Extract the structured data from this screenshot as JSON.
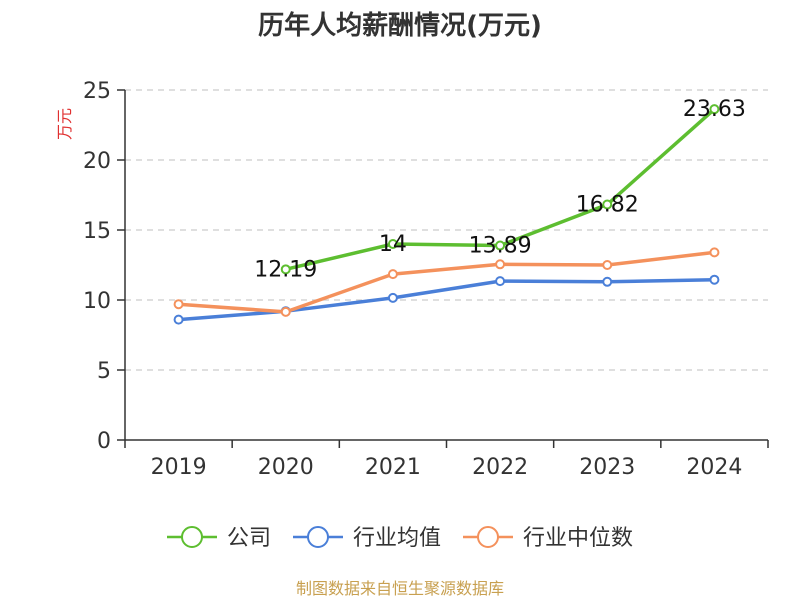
{
  "chart_data": {
    "type": "line",
    "title": "历年人均薪酬情况(万元)",
    "ylabel": "万元",
    "ylim": [
      0,
      25
    ],
    "yticks": [
      0,
      5,
      10,
      15,
      20,
      25
    ],
    "categories": [
      "2019",
      "2020",
      "2021",
      "2022",
      "2023",
      "2024"
    ],
    "series": [
      {
        "name": "公司",
        "color": "#5dbe30",
        "values": [
          null,
          12.19,
          14,
          13.89,
          16.82,
          23.63
        ],
        "labels": true
      },
      {
        "name": "行业均值",
        "color": "#4a7fd8",
        "values": [
          8.6,
          9.2,
          10.15,
          11.35,
          11.3,
          11.45
        ],
        "labels": false
      },
      {
        "name": "行业中位数",
        "color": "#f4915c",
        "values": [
          9.7,
          9.15,
          11.85,
          12.55,
          12.5,
          13.4
        ],
        "labels": false
      }
    ],
    "source": "制图数据来自恒生聚源数据库"
  },
  "colors": {
    "axis": "#333333",
    "grid": "#cccccc",
    "ylabel": "#e03030",
    "source": "#c8a050"
  }
}
